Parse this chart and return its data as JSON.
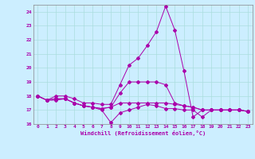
{
  "xlabel": "Windchill (Refroidissement éolien,°C)",
  "background_color": "#cceeff",
  "grid_color": "#aadddd",
  "line_color": "#aa00aa",
  "xlim": [
    -0.5,
    23.5
  ],
  "ylim": [
    16,
    24.5
  ],
  "xticks": [
    0,
    1,
    2,
    3,
    4,
    5,
    6,
    7,
    8,
    9,
    10,
    11,
    12,
    13,
    14,
    15,
    16,
    17,
    18,
    19,
    20,
    21,
    22,
    23
  ],
  "yticks": [
    16,
    17,
    18,
    19,
    20,
    21,
    22,
    23,
    24
  ],
  "series": [
    [
      18.0,
      17.7,
      17.7,
      17.8,
      17.5,
      17.3,
      17.2,
      17.0,
      16.1,
      16.8,
      17.0,
      17.2,
      17.4,
      17.3,
      17.1,
      17.1,
      17.0,
      17.0,
      16.5,
      17.0,
      17.0,
      17.0,
      17.0,
      16.9
    ],
    [
      18.0,
      17.7,
      18.0,
      18.0,
      17.8,
      17.5,
      17.5,
      17.4,
      17.4,
      18.8,
      20.2,
      20.7,
      21.6,
      22.6,
      24.4,
      22.7,
      19.8,
      16.5,
      17.0,
      17.0,
      17.0,
      17.0,
      17.0,
      16.9
    ],
    [
      18.0,
      17.7,
      17.8,
      17.8,
      17.5,
      17.3,
      17.2,
      17.1,
      17.2,
      18.2,
      19.0,
      19.0,
      19.0,
      19.0,
      18.8,
      17.5,
      17.3,
      17.2,
      17.0,
      17.0,
      17.0,
      17.0,
      17.0,
      16.9
    ],
    [
      18.0,
      17.7,
      17.8,
      17.8,
      17.5,
      17.3,
      17.2,
      17.1,
      17.2,
      17.5,
      17.5,
      17.5,
      17.5,
      17.5,
      17.5,
      17.4,
      17.3,
      17.2,
      17.0,
      17.0,
      17.0,
      17.0,
      17.0,
      16.9
    ]
  ]
}
